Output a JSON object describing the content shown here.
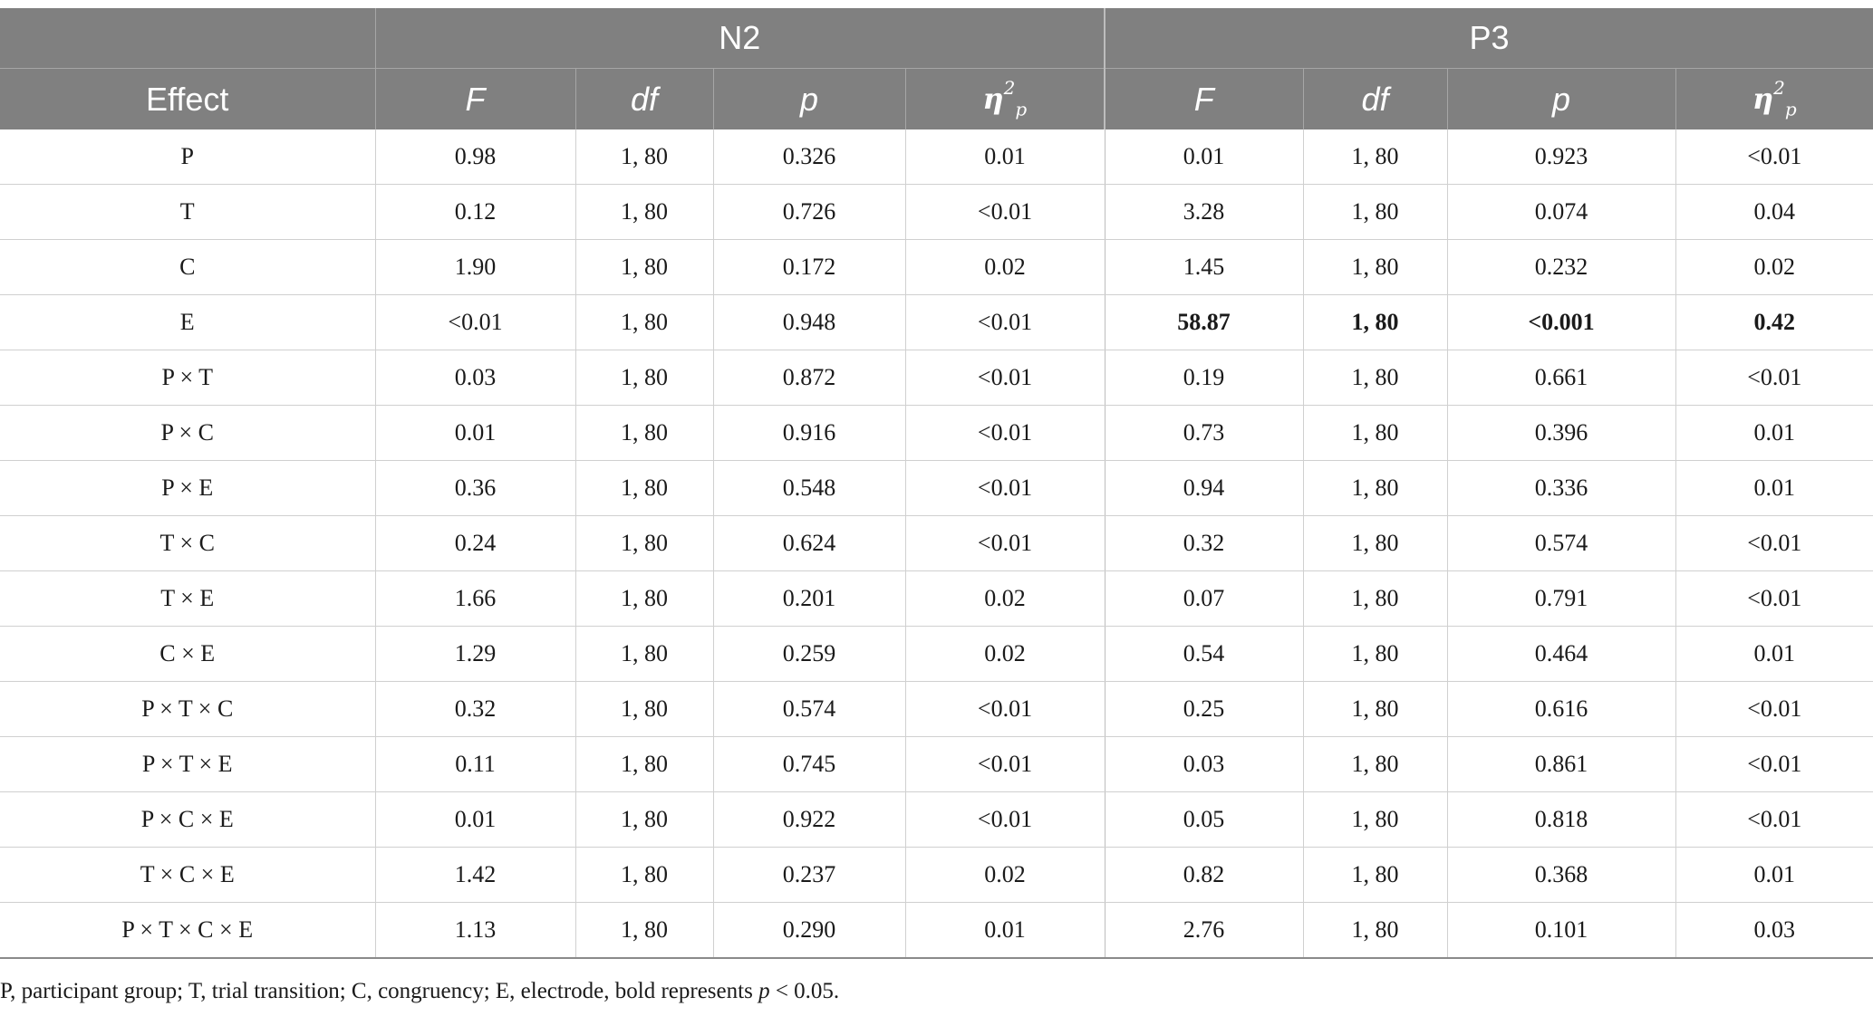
{
  "table": {
    "groups": {
      "first": "N2",
      "second": "P3"
    },
    "headers": {
      "effect": "Effect",
      "F": "F",
      "df": "df",
      "p": "p",
      "eta_symbol": "η",
      "eta_sup": "2",
      "eta_sub": "p"
    },
    "rows": [
      {
        "effect": "P",
        "n2": [
          "0.98",
          "1, 80",
          "0.326",
          "0.01"
        ],
        "p3": [
          "0.01",
          "1, 80",
          "0.923",
          "<0.01"
        ],
        "p3_bold": false
      },
      {
        "effect": "T",
        "n2": [
          "0.12",
          "1, 80",
          "0.726",
          "<0.01"
        ],
        "p3": [
          "3.28",
          "1, 80",
          "0.074",
          "0.04"
        ],
        "p3_bold": false
      },
      {
        "effect": "C",
        "n2": [
          "1.90",
          "1, 80",
          "0.172",
          "0.02"
        ],
        "p3": [
          "1.45",
          "1, 80",
          "0.232",
          "0.02"
        ],
        "p3_bold": false
      },
      {
        "effect": "E",
        "n2": [
          "<0.01",
          "1, 80",
          "0.948",
          "<0.01"
        ],
        "p3": [
          "58.87",
          "1, 80",
          "<0.001",
          "0.42"
        ],
        "p3_bold": true
      },
      {
        "effect": "P × T",
        "n2": [
          "0.03",
          "1, 80",
          "0.872",
          "<0.01"
        ],
        "p3": [
          "0.19",
          "1, 80",
          "0.661",
          "<0.01"
        ],
        "p3_bold": false
      },
      {
        "effect": "P × C",
        "n2": [
          "0.01",
          "1, 80",
          "0.916",
          "<0.01"
        ],
        "p3": [
          "0.73",
          "1, 80",
          "0.396",
          "0.01"
        ],
        "p3_bold": false
      },
      {
        "effect": "P × E",
        "n2": [
          "0.36",
          "1, 80",
          "0.548",
          "<0.01"
        ],
        "p3": [
          "0.94",
          "1, 80",
          "0.336",
          "0.01"
        ],
        "p3_bold": false
      },
      {
        "effect": "T × C",
        "n2": [
          "0.24",
          "1, 80",
          "0.624",
          "<0.01"
        ],
        "p3": [
          "0.32",
          "1, 80",
          "0.574",
          "<0.01"
        ],
        "p3_bold": false
      },
      {
        "effect": "T × E",
        "n2": [
          "1.66",
          "1, 80",
          "0.201",
          "0.02"
        ],
        "p3": [
          "0.07",
          "1, 80",
          "0.791",
          "<0.01"
        ],
        "p3_bold": false
      },
      {
        "effect": "C × E",
        "n2": [
          "1.29",
          "1, 80",
          "0.259",
          "0.02"
        ],
        "p3": [
          "0.54",
          "1, 80",
          "0.464",
          "0.01"
        ],
        "p3_bold": false
      },
      {
        "effect": "P × T × C",
        "n2": [
          "0.32",
          "1, 80",
          "0.574",
          "<0.01"
        ],
        "p3": [
          "0.25",
          "1, 80",
          "0.616",
          "<0.01"
        ],
        "p3_bold": false
      },
      {
        "effect": "P × T × E",
        "n2": [
          "0.11",
          "1, 80",
          "0.745",
          "<0.01"
        ],
        "p3": [
          "0.03",
          "1, 80",
          "0.861",
          "<0.01"
        ],
        "p3_bold": false
      },
      {
        "effect": "P × C × E",
        "n2": [
          "0.01",
          "1, 80",
          "0.922",
          "<0.01"
        ],
        "p3": [
          "0.05",
          "1, 80",
          "0.818",
          "<0.01"
        ],
        "p3_bold": false
      },
      {
        "effect": "T × C × E",
        "n2": [
          "1.42",
          "1, 80",
          "0.237",
          "0.02"
        ],
        "p3": [
          "0.82",
          "1, 80",
          "0.368",
          "0.01"
        ],
        "p3_bold": false
      },
      {
        "effect": "P × T × C × E",
        "n2": [
          "1.13",
          "1, 80",
          "0.290",
          "0.01"
        ],
        "p3": [
          "2.76",
          "1, 80",
          "0.101",
          "0.03"
        ],
        "p3_bold": false
      }
    ]
  },
  "footnote": {
    "text_before": "P, participant group; T, trial transition; C, congruency; E, electrode, bold represents ",
    "italic": "p",
    "text_after": " < 0.05."
  }
}
